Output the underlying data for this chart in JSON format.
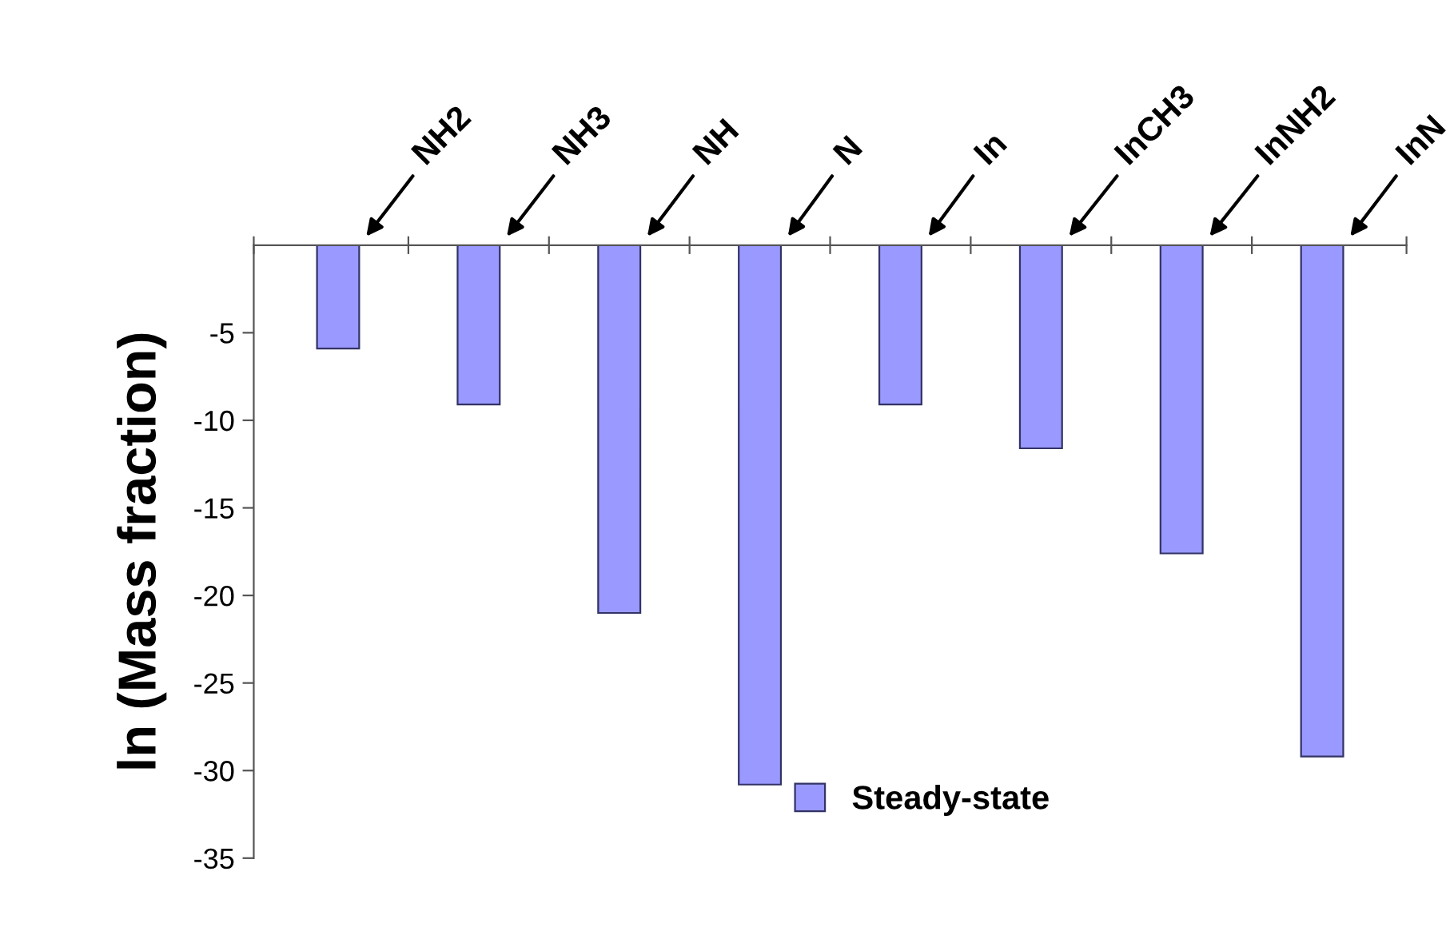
{
  "chart_data": {
    "type": "bar",
    "ylabel": "ln (Mass fraction)",
    "categories": [
      "NH2",
      "NH3",
      "NH",
      "N",
      "In",
      "InCH3",
      "InNH2",
      "InN"
    ],
    "series": [
      {
        "name": "Steady-state",
        "color": "#9999ff",
        "values": [
          -5.9,
          -9.1,
          -21.0,
          -30.8,
          -9.1,
          -11.6,
          -17.6,
          -29.2
        ]
      }
    ],
    "ylim": [
      -35,
      0
    ],
    "yticks": [
      -35,
      -30,
      -25,
      -20,
      -15,
      -10,
      -5
    ],
    "grid": false,
    "legend": "bottom"
  }
}
